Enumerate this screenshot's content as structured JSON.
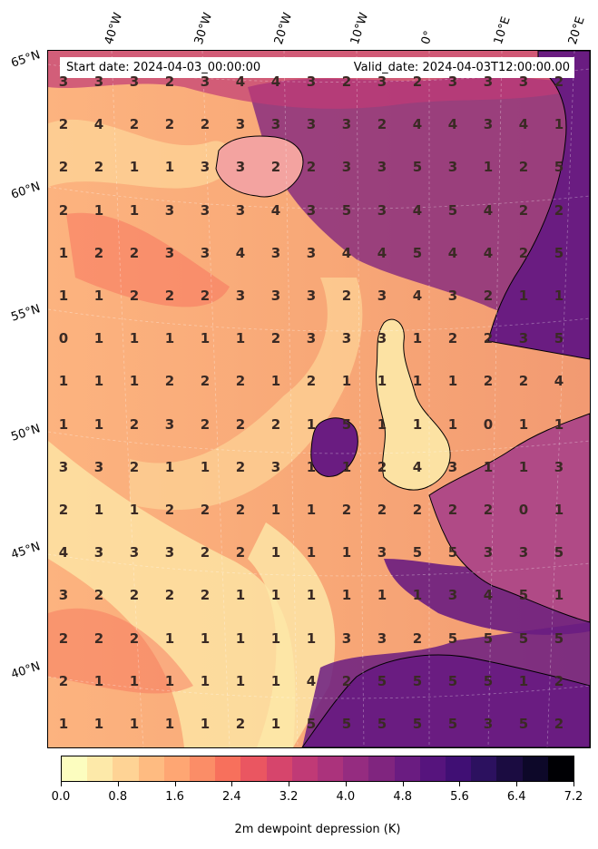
{
  "info": {
    "start_date": "Start date: 2024-04-03_00:00:00",
    "valid_date": "Valid_date: 2024-04-03T12:00:00.00"
  },
  "lon_labels": [
    "40°W",
    "30°W",
    "20°W",
    "10°W",
    "0°",
    "10°E",
    "20°E"
  ],
  "lat_labels": [
    "65°N",
    "60°N",
    "55°N",
    "50°N",
    "45°N",
    "40°N"
  ],
  "grid_values": [
    [
      "3",
      "3",
      "3",
      "2",
      "3",
      "4",
      "4",
      "3",
      "2",
      "3",
      "2",
      "3",
      "3",
      "3",
      "2"
    ],
    [
      "2",
      "4",
      "2",
      "2",
      "2",
      "3",
      "3",
      "3",
      "3",
      "2",
      "4",
      "4",
      "3",
      "4",
      "1"
    ],
    [
      "2",
      "2",
      "1",
      "1",
      "3",
      "3",
      "2",
      "2",
      "3",
      "3",
      "5",
      "3",
      "1",
      "2",
      "5"
    ],
    [
      "2",
      "1",
      "1",
      "3",
      "3",
      "3",
      "4",
      "3",
      "5",
      "3",
      "4",
      "5",
      "4",
      "2",
      "2"
    ],
    [
      "1",
      "2",
      "2",
      "3",
      "3",
      "4",
      "3",
      "3",
      "4",
      "4",
      "5",
      "4",
      "4",
      "2",
      "5"
    ],
    [
      "1",
      "1",
      "2",
      "2",
      "2",
      "3",
      "3",
      "3",
      "2",
      "3",
      "4",
      "3",
      "2",
      "1",
      "1"
    ],
    [
      "0",
      "1",
      "1",
      "1",
      "1",
      "1",
      "2",
      "3",
      "3",
      "3",
      "1",
      "2",
      "2",
      "3",
      "5"
    ],
    [
      "1",
      "1",
      "1",
      "2",
      "2",
      "2",
      "1",
      "2",
      "1",
      "1",
      "1",
      "1",
      "2",
      "2",
      "4"
    ],
    [
      "1",
      "1",
      "2",
      "3",
      "2",
      "2",
      "2",
      "1",
      "5",
      "1",
      "1",
      "1",
      "0",
      "1",
      "1"
    ],
    [
      "3",
      "3",
      "2",
      "1",
      "1",
      "2",
      "3",
      "1",
      "1",
      "2",
      "4",
      "3",
      "1",
      "1",
      "3"
    ],
    [
      "2",
      "1",
      "1",
      "2",
      "2",
      "2",
      "1",
      "1",
      "2",
      "2",
      "2",
      "2",
      "2",
      "0",
      "1"
    ],
    [
      "4",
      "3",
      "3",
      "3",
      "2",
      "2",
      "1",
      "1",
      "1",
      "3",
      "5",
      "5",
      "3",
      "3",
      "5"
    ],
    [
      "3",
      "2",
      "2",
      "2",
      "2",
      "1",
      "1",
      "1",
      "1",
      "1",
      "1",
      "3",
      "4",
      "5",
      "1"
    ],
    [
      "2",
      "2",
      "2",
      "1",
      "1",
      "1",
      "1",
      "1",
      "3",
      "3",
      "2",
      "5",
      "5",
      "5",
      "5"
    ],
    [
      "2",
      "1",
      "1",
      "1",
      "1",
      "1",
      "1",
      "4",
      "2",
      "5",
      "5",
      "5",
      "5",
      "1",
      "2"
    ],
    [
      "1",
      "1",
      "1",
      "1",
      "1",
      "2",
      "1",
      "5",
      "5",
      "5",
      "5",
      "5",
      "3",
      "5",
      "2"
    ]
  ],
  "colorbar": {
    "title": "2m dewpoint depression (K)",
    "ticks": [
      "0.0",
      "0.8",
      "1.6",
      "2.4",
      "3.2",
      "4.0",
      "4.8",
      "5.6",
      "6.4",
      "7.2"
    ],
    "colors": [
      "#fcfdbf",
      "#fde9a9",
      "#fed395",
      "#febb81",
      "#fea673",
      "#fb8d67",
      "#f7705c",
      "#ea5661",
      "#d6456c",
      "#c03a76",
      "#ab337c",
      "#952c80",
      "#80257f",
      "#6a1c81",
      "#56147d",
      "#400f74",
      "#2c115f",
      "#1b0c41",
      "#0d0829",
      "#000004"
    ],
    "range": [
      0,
      7.2
    ]
  },
  "colors": {
    "ocean_warm": "#fbb27e",
    "ocean_dry": "#7b2d7f",
    "land": "#6a2a7c",
    "coast": "#000000"
  }
}
